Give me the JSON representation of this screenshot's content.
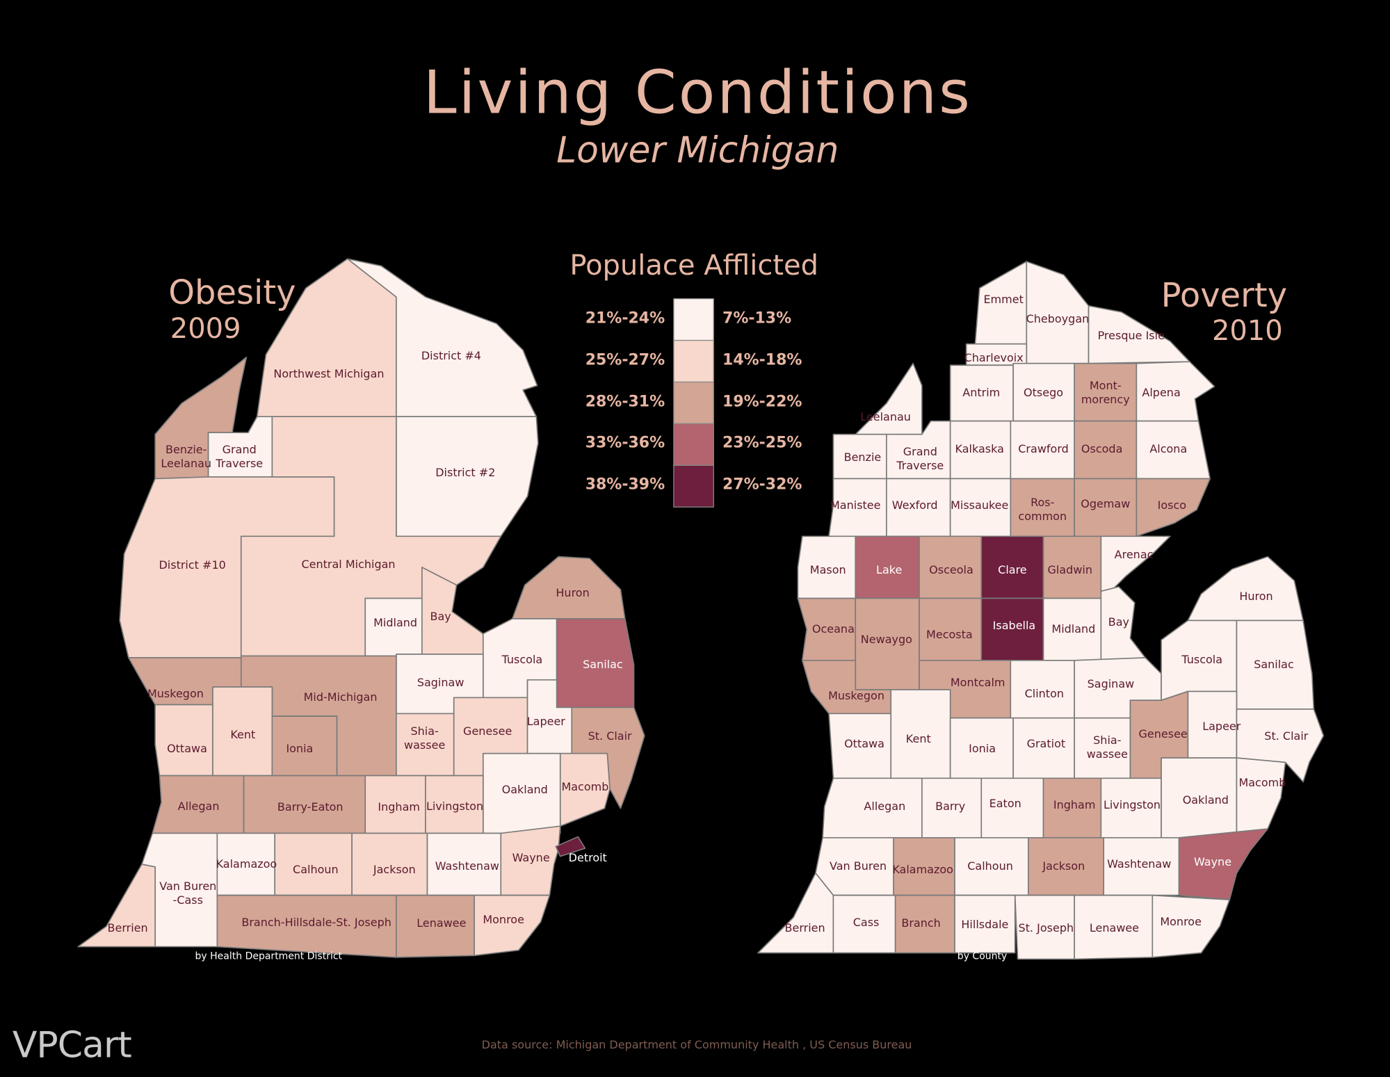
{
  "title": "Living Conditions",
  "subtitle": "Lower Michigan",
  "legend": {
    "title": "Populace Afflicted",
    "entries": [
      {
        "color": "#fdf2ed",
        "left": "21%-24%",
        "right": "7%-13%"
      },
      {
        "color": "#f8d8cc",
        "left": "25%-27%",
        "right": "14%-18%"
      },
      {
        "color": "#d3a595",
        "left": "28%-31%",
        "right": "19%-22%"
      },
      {
        "color": "#b3646e",
        "left": "33%-36%",
        "right": "23%-25%"
      },
      {
        "color": "#6d1f3d",
        "left": "38%-39%",
        "right": "27%-32%"
      }
    ]
  },
  "maps": [
    {
      "title": "Obesity",
      "year": "2009",
      "note": "by Health Department District",
      "regions": [
        {
          "name": "Benzie-\nLeelanau",
          "color": "#d3a595"
        },
        {
          "name": "Grand\nTraverse",
          "color": "#fdf2ed"
        },
        {
          "name": "Northwest Michigan",
          "color": "#f8d8cc"
        },
        {
          "name": "District #4",
          "color": "#fdf2ed"
        },
        {
          "name": "District #2",
          "color": "#fdf2ed"
        },
        {
          "name": "District #10",
          "color": "#f8d8cc"
        },
        {
          "name": "Central Michigan",
          "color": "#f8d8cc"
        },
        {
          "name": "Midland",
          "color": "#fdf2ed"
        },
        {
          "name": "Bay",
          "color": "#f8d8cc"
        },
        {
          "name": "Huron",
          "color": "#d3a595"
        },
        {
          "name": "Tuscola",
          "color": "#fdf2ed"
        },
        {
          "name": "Sanilac",
          "color": "#b3646e"
        },
        {
          "name": "Saginaw",
          "color": "#fdf2ed"
        },
        {
          "name": "Mid-Michigan",
          "color": "#d3a595"
        },
        {
          "name": "Muskegon",
          "color": "#d3a595"
        },
        {
          "name": "Ottawa",
          "color": "#f8d8cc"
        },
        {
          "name": "Kent",
          "color": "#f8d8cc"
        },
        {
          "name": "Ionia",
          "color": "#d3a595"
        },
        {
          "name": "Shia-\nwassee",
          "color": "#f8d8cc"
        },
        {
          "name": "Genesee",
          "color": "#f8d8cc"
        },
        {
          "name": "Lapeer",
          "color": "#fdf2ed"
        },
        {
          "name": "St. Clair",
          "color": "#d3a595"
        },
        {
          "name": "Macomb",
          "color": "#f8d8cc"
        },
        {
          "name": "Oakland",
          "color": "#fdf2ed"
        },
        {
          "name": "Allegan",
          "color": "#d3a595"
        },
        {
          "name": "Barry-Eaton",
          "color": "#d3a595"
        },
        {
          "name": "Ingham",
          "color": "#f8d8cc"
        },
        {
          "name": "Livingston",
          "color": "#f8d8cc"
        },
        {
          "name": "Van Buren\n-Cass",
          "color": "#fdf2ed"
        },
        {
          "name": "Berrien",
          "color": "#f8d8cc"
        },
        {
          "name": "Kalamazoo",
          "color": "#fdf2ed"
        },
        {
          "name": "Calhoun",
          "color": "#f8d8cc"
        },
        {
          "name": "Jackson",
          "color": "#f8d8cc"
        },
        {
          "name": "Washtenaw",
          "color": "#fdf2ed"
        },
        {
          "name": "Wayne",
          "color": "#f8d8cc"
        },
        {
          "name": "Detroit",
          "color": "#6d1f3d"
        },
        {
          "name": "Branch-Hillsdale-St. Joseph",
          "color": "#d3a595"
        },
        {
          "name": "Lenawee",
          "color": "#d3a595"
        },
        {
          "name": "Monroe",
          "color": "#f8d8cc"
        }
      ]
    },
    {
      "title": "Poverty",
      "year": "2010",
      "note": "by County",
      "regions": [
        {
          "name": "Emmet",
          "color": "#fdf2ed"
        },
        {
          "name": "Cheboygan",
          "color": "#fdf2ed"
        },
        {
          "name": "Presque Isle",
          "color": "#fdf2ed"
        },
        {
          "name": "Charlevoix",
          "color": "#fdf2ed"
        },
        {
          "name": "Leelanau",
          "color": "#fdf2ed"
        },
        {
          "name": "Antrim",
          "color": "#fdf2ed"
        },
        {
          "name": "Otsego",
          "color": "#fdf2ed"
        },
        {
          "name": "Mont-\nmorency",
          "color": "#d3a595"
        },
        {
          "name": "Alpena",
          "color": "#fdf2ed"
        },
        {
          "name": "Benzie",
          "color": "#fdf2ed"
        },
        {
          "name": "Grand\nTraverse",
          "color": "#fdf2ed"
        },
        {
          "name": "Kalkaska",
          "color": "#fdf2ed"
        },
        {
          "name": "Crawford",
          "color": "#fdf2ed"
        },
        {
          "name": "Oscoda",
          "color": "#d3a595"
        },
        {
          "name": "Alcona",
          "color": "#fdf2ed"
        },
        {
          "name": "Manistee",
          "color": "#fdf2ed"
        },
        {
          "name": "Wexford",
          "color": "#fdf2ed"
        },
        {
          "name": "Missaukee",
          "color": "#fdf2ed"
        },
        {
          "name": "Ros-\ncommon",
          "color": "#d3a595"
        },
        {
          "name": "Ogemaw",
          "color": "#d3a595"
        },
        {
          "name": "Iosco",
          "color": "#d3a595"
        },
        {
          "name": "Mason",
          "color": "#fdf2ed"
        },
        {
          "name": "Lake",
          "color": "#b3646e"
        },
        {
          "name": "Osceola",
          "color": "#d3a595"
        },
        {
          "name": "Clare",
          "color": "#6d1f3d"
        },
        {
          "name": "Gladwin",
          "color": "#d3a595"
        },
        {
          "name": "Arenac",
          "color": "#fdf2ed"
        },
        {
          "name": "Oceana",
          "color": "#d3a595"
        },
        {
          "name": "Newaygo",
          "color": "#d3a595"
        },
        {
          "name": "Mecosta",
          "color": "#d3a595"
        },
        {
          "name": "Isabella",
          "color": "#6d1f3d"
        },
        {
          "name": "Midland",
          "color": "#fdf2ed"
        },
        {
          "name": "Bay",
          "color": "#fdf2ed"
        },
        {
          "name": "Huron",
          "color": "#fdf2ed"
        },
        {
          "name": "Muskegon",
          "color": "#d3a595"
        },
        {
          "name": "Montcalm",
          "color": "#d3a595"
        },
        {
          "name": "Clinton",
          "color": "#fdf2ed"
        },
        {
          "name": "Saginaw",
          "color": "#fdf2ed"
        },
        {
          "name": "Tuscola",
          "color": "#fdf2ed"
        },
        {
          "name": "Sanilac",
          "color": "#fdf2ed"
        },
        {
          "name": "Lapeer",
          "color": "#fdf2ed"
        },
        {
          "name": "St. Clair",
          "color": "#fdf2ed"
        },
        {
          "name": "Ottawa",
          "color": "#fdf2ed"
        },
        {
          "name": "Kent",
          "color": "#fdf2ed"
        },
        {
          "name": "Ionia",
          "color": "#fdf2ed"
        },
        {
          "name": "Gratiot",
          "color": "#fdf2ed"
        },
        {
          "name": "Shia-\nwassee",
          "color": "#fdf2ed"
        },
        {
          "name": "Genesee",
          "color": "#d3a595"
        },
        {
          "name": "Allegan",
          "color": "#fdf2ed"
        },
        {
          "name": "Barry",
          "color": "#fdf2ed"
        },
        {
          "name": "Eaton",
          "color": "#fdf2ed"
        },
        {
          "name": "Ingham",
          "color": "#d3a595"
        },
        {
          "name": "Livingston",
          "color": "#fdf2ed"
        },
        {
          "name": "Oakland",
          "color": "#fdf2ed"
        },
        {
          "name": "Macomb",
          "color": "#fdf2ed"
        },
        {
          "name": "Van Buren",
          "color": "#fdf2ed"
        },
        {
          "name": "Kalamazoo",
          "color": "#d3a595"
        },
        {
          "name": "Calhoun",
          "color": "#fdf2ed"
        },
        {
          "name": "Jackson",
          "color": "#d3a595"
        },
        {
          "name": "Washtenaw",
          "color": "#fdf2ed"
        },
        {
          "name": "Wayne",
          "color": "#b3646e"
        },
        {
          "name": "Berrien",
          "color": "#fdf2ed"
        },
        {
          "name": "Cass",
          "color": "#fdf2ed"
        },
        {
          "name": "Branch",
          "color": "#d3a595"
        },
        {
          "name": "Hillsdale",
          "color": "#fdf2ed"
        },
        {
          "name": "St. Joseph",
          "color": "#fdf2ed"
        },
        {
          "name": "Lenawee",
          "color": "#fdf2ed"
        },
        {
          "name": "Monroe",
          "color": "#fdf2ed"
        }
      ]
    }
  ],
  "source": "Data source: Michigan Department of Community Health , US Census Bureau",
  "logo": "VPCart"
}
